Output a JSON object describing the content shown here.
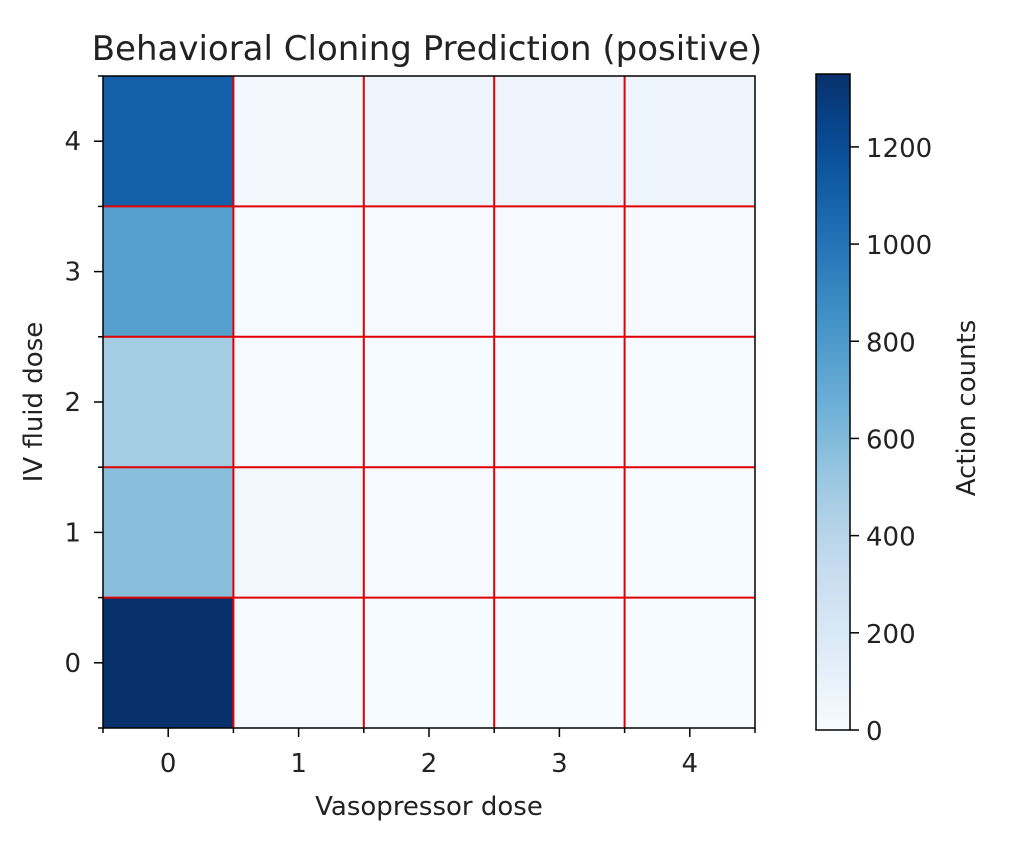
{
  "chart_data": {
    "type": "heatmap",
    "title": "Behavioral Cloning Prediction (positive)",
    "xlabel": "Vasopressor dose",
    "ylabel": "IV fluid dose",
    "x_categories": [
      "0",
      "1",
      "2",
      "3",
      "4"
    ],
    "y_categories": [
      "0",
      "1",
      "2",
      "3",
      "4"
    ],
    "values": [
      [
        1350,
        10,
        5,
        5,
        5
      ],
      [
        580,
        40,
        10,
        5,
        5
      ],
      [
        480,
        10,
        5,
        5,
        5
      ],
      [
        760,
        15,
        10,
        10,
        10
      ],
      [
        1100,
        30,
        70,
        70,
        70
      ]
    ],
    "colorbar": {
      "label": "Action counts",
      "min": 0,
      "max": 1350,
      "ticks": [
        0,
        200,
        400,
        600,
        800,
        1000,
        1200
      ],
      "colormap": "Blues"
    },
    "grid_color": "#e00000",
    "grid": true
  }
}
